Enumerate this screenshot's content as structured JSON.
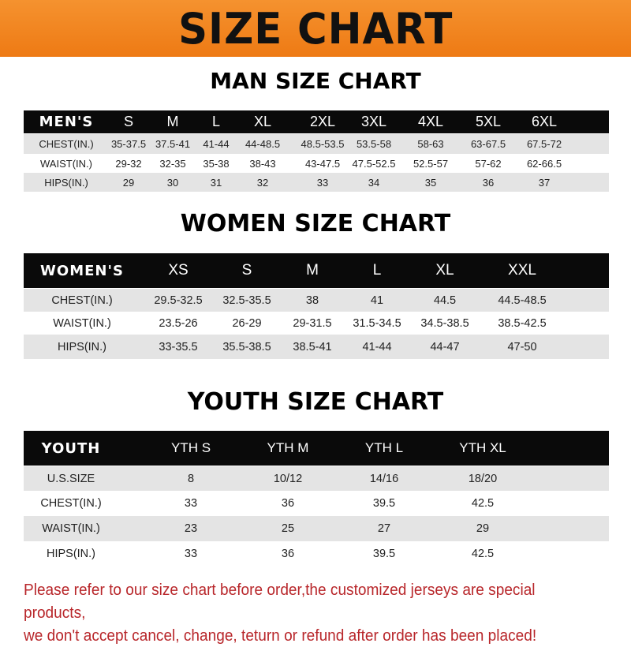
{
  "banner": {
    "title": "SIZE CHART",
    "color": "#f08420"
  },
  "tables": [
    {
      "title": "MAN SIZE CHART",
      "header": [
        "MEN'S",
        "S",
        "M",
        "L",
        "XL",
        "2XL",
        "3XL",
        "4XL",
        "5XL",
        "6XL"
      ],
      "rows": [
        [
          "CHEST(IN.)",
          "35-37.5",
          "37.5-41",
          "41-44",
          "44-48.5",
          "48.5-53.5",
          "53.5-58",
          "58-63",
          "63-67.5",
          "67.5-72"
        ],
        [
          "WAIST(IN.)",
          "29-32",
          "32-35",
          "35-38",
          "38-43",
          "43-47.5",
          "47.5-52.5",
          "52.5-57",
          "57-62",
          "62-66.5"
        ],
        [
          "HIPS(IN.)",
          "29",
          "30",
          "31",
          "32",
          "33",
          "34",
          "35",
          "36",
          "37"
        ]
      ]
    },
    {
      "title": "WOMEN SIZE CHART",
      "header": [
        "WOMEN'S",
        "XS",
        "S",
        "M",
        "L",
        "XL",
        "XXL"
      ],
      "rows": [
        [
          "CHEST(IN.)",
          "29.5-32.5",
          "32.5-35.5",
          "38",
          "41",
          "44.5",
          "44.5-48.5"
        ],
        [
          "WAIST(IN.)",
          "23.5-26",
          "26-29",
          "29-31.5",
          "31.5-34.5",
          "34.5-38.5",
          "38.5-42.5"
        ],
        [
          "HIPS(IN.)",
          "33-35.5",
          "35.5-38.5",
          "38.5-41",
          "41-44",
          "44-47",
          "47-50"
        ]
      ]
    },
    {
      "title": "YOUTH SIZE CHART",
      "header": [
        "YOUTH",
        "YTH S",
        "YTH M",
        "YTH L",
        "YTH XL"
      ],
      "rows": [
        [
          "U.S.SIZE",
          "8",
          "10/12",
          "14/16",
          "18/20"
        ],
        [
          "CHEST(IN.)",
          "33",
          "36",
          "39.5",
          "42.5"
        ],
        [
          "WAIST(IN.)",
          "23",
          "25",
          "27",
          "29"
        ],
        [
          "HIPS(IN.)",
          "33",
          "36",
          "39.5",
          "42.5"
        ]
      ]
    }
  ],
  "note": {
    "line1": "Please refer to our size chart before order,the customized jerseys are special products,",
    "line2": "we don't accept cancel, change, teturn or refund after order has been placed!",
    "color": "#b8262a"
  }
}
